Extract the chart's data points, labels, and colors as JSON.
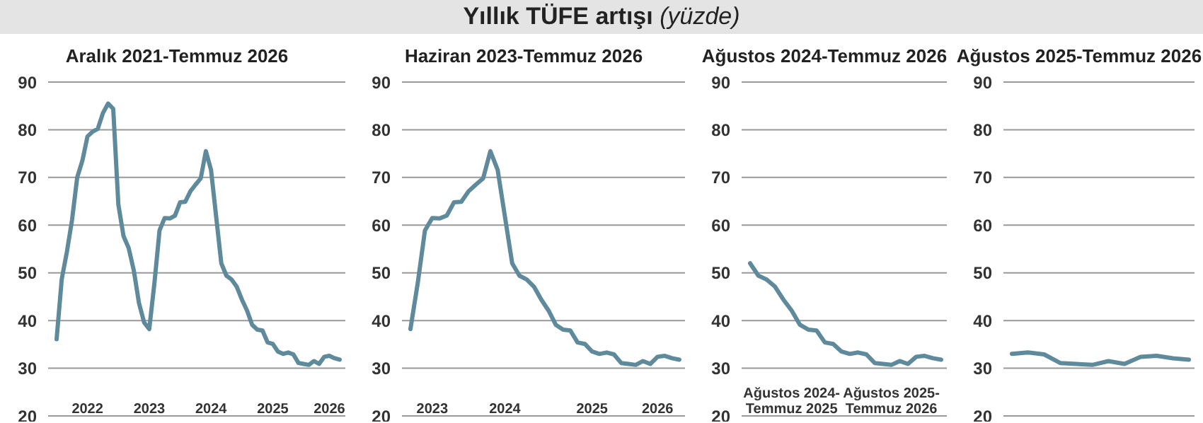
{
  "chart_data": [
    {
      "type": "line",
      "title": "Aralık 2021-Temmuz 2026",
      "annotations": [
        "Yıllık TÜFE artışı (yüzde)"
      ],
      "categories": [
        null,
        null,
        null,
        null,
        null,
        null,
        "2022",
        null,
        null,
        null,
        null,
        null,
        null,
        null,
        null,
        null,
        null,
        null,
        "2023",
        null,
        null,
        null,
        null,
        null,
        null,
        null,
        null,
        null,
        null,
        null,
        "2024",
        null,
        null,
        null,
        null,
        null,
        null,
        null,
        null,
        null,
        null,
        null,
        "2025",
        null,
        null,
        null,
        null,
        null,
        null,
        null,
        null,
        null,
        null,
        "2026",
        null,
        null
      ],
      "series": [
        {
          "color": "#5f8a9c",
          "values": [
            36.1,
            48.7,
            54.4,
            61.1,
            70.0,
            73.5,
            78.6,
            79.6,
            80.2,
            83.5,
            85.5,
            84.4,
            64.3,
            57.7,
            55.2,
            50.5,
            43.7,
            39.6,
            38.2,
            47.8,
            58.9,
            61.5,
            61.4,
            62.0,
            64.8,
            64.9,
            67.1,
            68.5,
            69.8,
            75.5,
            71.6,
            61.8,
            52.0,
            49.4,
            48.6,
            47.1,
            44.4,
            42.1,
            39.1,
            38.1,
            37.9,
            35.4,
            35.1,
            33.5,
            33.0,
            33.3,
            32.9,
            31.1,
            30.9,
            30.7,
            31.5,
            30.9,
            32.4,
            32.6,
            32.1,
            31.8
          ]
        }
      ],
      "ylim": [
        20,
        90
      ],
      "yticks": [
        20,
        30,
        40,
        50,
        60,
        70,
        80,
        90
      ],
      "grid": "y",
      "legend": false,
      "marker": "none",
      "line_style": "solid"
    },
    {
      "type": "line",
      "title": "Haziran 2023-Temmuz 2026",
      "categories": [
        null,
        null,
        null,
        "2023",
        null,
        null,
        null,
        null,
        null,
        null,
        null,
        null,
        null,
        "2024",
        null,
        null,
        null,
        null,
        null,
        null,
        null,
        null,
        null,
        null,
        null,
        "2025",
        null,
        null,
        null,
        null,
        null,
        null,
        null,
        null,
        "2026",
        null,
        null,
        null
      ],
      "series": [
        {
          "color": "#5f8a9c",
          "values": [
            38.2,
            47.8,
            58.9,
            61.5,
            61.4,
            62.0,
            64.8,
            64.9,
            67.1,
            68.5,
            69.8,
            75.5,
            71.6,
            61.8,
            52.0,
            49.4,
            48.6,
            47.1,
            44.4,
            42.1,
            39.1,
            38.1,
            37.9,
            35.4,
            35.1,
            33.5,
            33.0,
            33.3,
            32.9,
            31.1,
            30.9,
            30.7,
            31.5,
            30.9,
            32.4,
            32.6,
            32.1,
            31.8
          ]
        }
      ],
      "ylim": [
        20,
        90
      ],
      "yticks": [
        20,
        30,
        40,
        50,
        60,
        70,
        80,
        90
      ],
      "grid": "y",
      "legend": false,
      "marker": "none",
      "line_style": "solid"
    },
    {
      "type": "line",
      "title": "Ağustos 2024-Temmuz 2026",
      "categories": [
        null,
        null,
        null,
        null,
        null,
        "Ağustos 2024-\nTemmuz 2025",
        null,
        null,
        null,
        null,
        null,
        null,
        null,
        null,
        null,
        null,
        null,
        "Ağustos 2025-\nTemmuz 2026",
        null,
        null,
        null,
        null,
        null,
        null
      ],
      "series": [
        {
          "color": "#5f8a9c",
          "values": [
            52.0,
            49.4,
            48.6,
            47.1,
            44.4,
            42.1,
            39.1,
            38.1,
            37.9,
            35.4,
            35.1,
            33.5,
            33.0,
            33.3,
            32.9,
            31.1,
            30.9,
            30.7,
            31.5,
            30.9,
            32.4,
            32.6,
            32.1,
            31.8
          ]
        }
      ],
      "ylim": [
        20,
        90
      ],
      "yticks": [
        20,
        30,
        40,
        50,
        60,
        70,
        80,
        90
      ],
      "grid": "y",
      "legend": false,
      "marker": "none",
      "line_style": "solid"
    },
    {
      "type": "line",
      "title": "Ağustos 2025-Temmuz 2026",
      "categories": [
        null,
        null,
        null,
        null,
        null,
        null,
        null,
        null,
        null,
        null,
        null,
        null
      ],
      "series": [
        {
          "color": "#5f8a9c",
          "values": [
            33.0,
            33.3,
            32.9,
            31.1,
            30.9,
            30.7,
            31.5,
            30.9,
            32.4,
            32.6,
            32.1,
            31.8
          ]
        }
      ],
      "ylim": [
        20,
        90
      ],
      "yticks": [
        20,
        30,
        40,
        50,
        60,
        70,
        80,
        90
      ],
      "grid": "y",
      "legend": false,
      "marker": "none",
      "line_style": "solid",
      "tick_labels": "y"
    }
  ]
}
